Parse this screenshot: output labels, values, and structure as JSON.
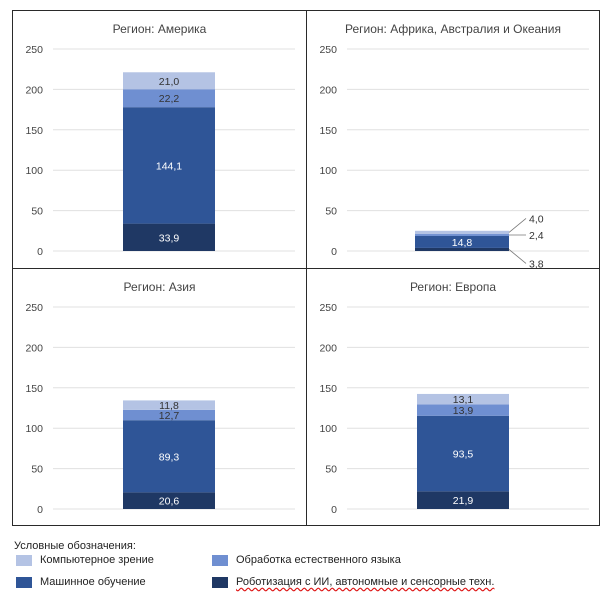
{
  "chart_data": [
    {
      "type": "bar",
      "title": "Регион: Америка",
      "categories": [
        ""
      ],
      "ylim": [
        0,
        250
      ],
      "yticks": [
        "0",
        "50",
        "100",
        "150",
        "200",
        "250"
      ],
      "series": [
        {
          "name": "Роботизация с ИИ, автономные и сенсорные техн.",
          "values": [
            33.9
          ],
          "label": "33,9"
        },
        {
          "name": "Машинное обучение",
          "values": [
            144.1
          ],
          "label": "144,1"
        },
        {
          "name": "Обработка естественного языка",
          "values": [
            22.2
          ],
          "label": "22,2"
        },
        {
          "name": "Компьютерное зрение",
          "values": [
            21.0
          ],
          "label": "21,0"
        }
      ]
    },
    {
      "type": "bar",
      "title": "Регион: Африка, Австралия и Океания",
      "categories": [
        ""
      ],
      "ylim": [
        0,
        250
      ],
      "yticks": [
        "0",
        "50",
        "100",
        "150",
        "200",
        "250"
      ],
      "series": [
        {
          "name": "Роботизация с ИИ, автономные и сенсорные техн.",
          "values": [
            3.8
          ],
          "label": "3,8"
        },
        {
          "name": "Машинное обучение",
          "values": [
            14.8
          ],
          "label": "14,8"
        },
        {
          "name": "Обработка естественного языка",
          "values": [
            2.4
          ],
          "label": "2,4"
        },
        {
          "name": "Компьютерное зрение",
          "values": [
            4.0
          ],
          "label": "4,0"
        }
      ]
    },
    {
      "type": "bar",
      "title": "Регион: Азия",
      "categories": [
        ""
      ],
      "ylim": [
        0,
        250
      ],
      "yticks": [
        "0",
        "50",
        "100",
        "150",
        "200",
        "250"
      ],
      "series": [
        {
          "name": "Роботизация с ИИ, автономные и сенсорные техн.",
          "values": [
            20.6
          ],
          "label": "20,6"
        },
        {
          "name": "Машинное обучение",
          "values": [
            89.3
          ],
          "label": "89,3"
        },
        {
          "name": "Обработка естественного языка",
          "values": [
            12.7
          ],
          "label": "12,7"
        },
        {
          "name": "Компьютерное зрение",
          "values": [
            11.8
          ],
          "label": "11,8"
        }
      ]
    },
    {
      "type": "bar",
      "title": "Регион: Европа",
      "categories": [
        ""
      ],
      "ylim": [
        0,
        250
      ],
      "yticks": [
        "0",
        "50",
        "100",
        "150",
        "200",
        "250"
      ],
      "series": [
        {
          "name": "Роботизация с ИИ, автономные и сенсорные техн.",
          "values": [
            21.9
          ],
          "label": "21,9"
        },
        {
          "name": "Машинное обучение",
          "values": [
            93.5
          ],
          "label": "93,5"
        },
        {
          "name": "Обработка естественного языка",
          "values": [
            13.9
          ],
          "label": "13,9"
        },
        {
          "name": "Компьютерное зрение",
          "values": [
            13.1
          ],
          "label": "13,1"
        }
      ]
    }
  ],
  "colors": {
    "robotics": "#1f3864",
    "ml": "#2f5597",
    "nlp": "#6f8fd1",
    "cv": "#b4c3e4",
    "grid": "#e0e0e0",
    "axis_text": "#444444"
  },
  "legend": {
    "title": "Условные обозначения:",
    "items": {
      "cv": "Компьютерное зрение",
      "nlp": "Обработка естественного языка",
      "ml": "Машинное обучение",
      "robotics": "Роботизация с ИИ, автономные и сенсорные техн."
    }
  }
}
